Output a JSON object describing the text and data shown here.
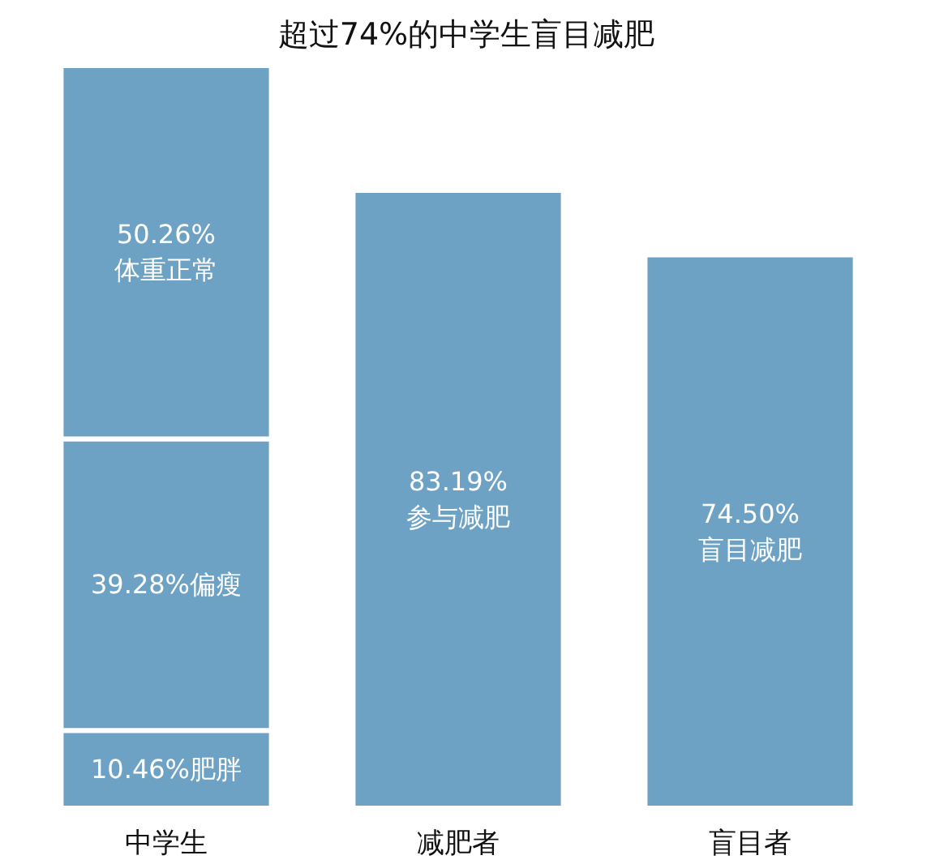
{
  "chart_data": {
    "type": "bar",
    "title": "超过74%的中学生盲目减肥",
    "categories": [
      "中学生",
      "减肥者",
      "盲目者"
    ],
    "stacked": true,
    "series": [
      {
        "color": "#6ea2c4",
        "values": [
          10.46,
          83.19,
          74.5
        ],
        "value_labels": [
          "10.46%肥胖",
          "83.19%\n参与减肥",
          "74.50%\n盲目减肥"
        ]
      },
      {
        "color": "#6ea2c4",
        "values": [
          39.28,
          null,
          null
        ],
        "value_labels": [
          "39.28%偏瘦",
          null,
          null
        ]
      },
      {
        "color": "#6ea2c4",
        "values": [
          50.26,
          null,
          null
        ],
        "value_labels": [
          "50.26%\n体重正常",
          null,
          null
        ]
      }
    ]
  }
}
